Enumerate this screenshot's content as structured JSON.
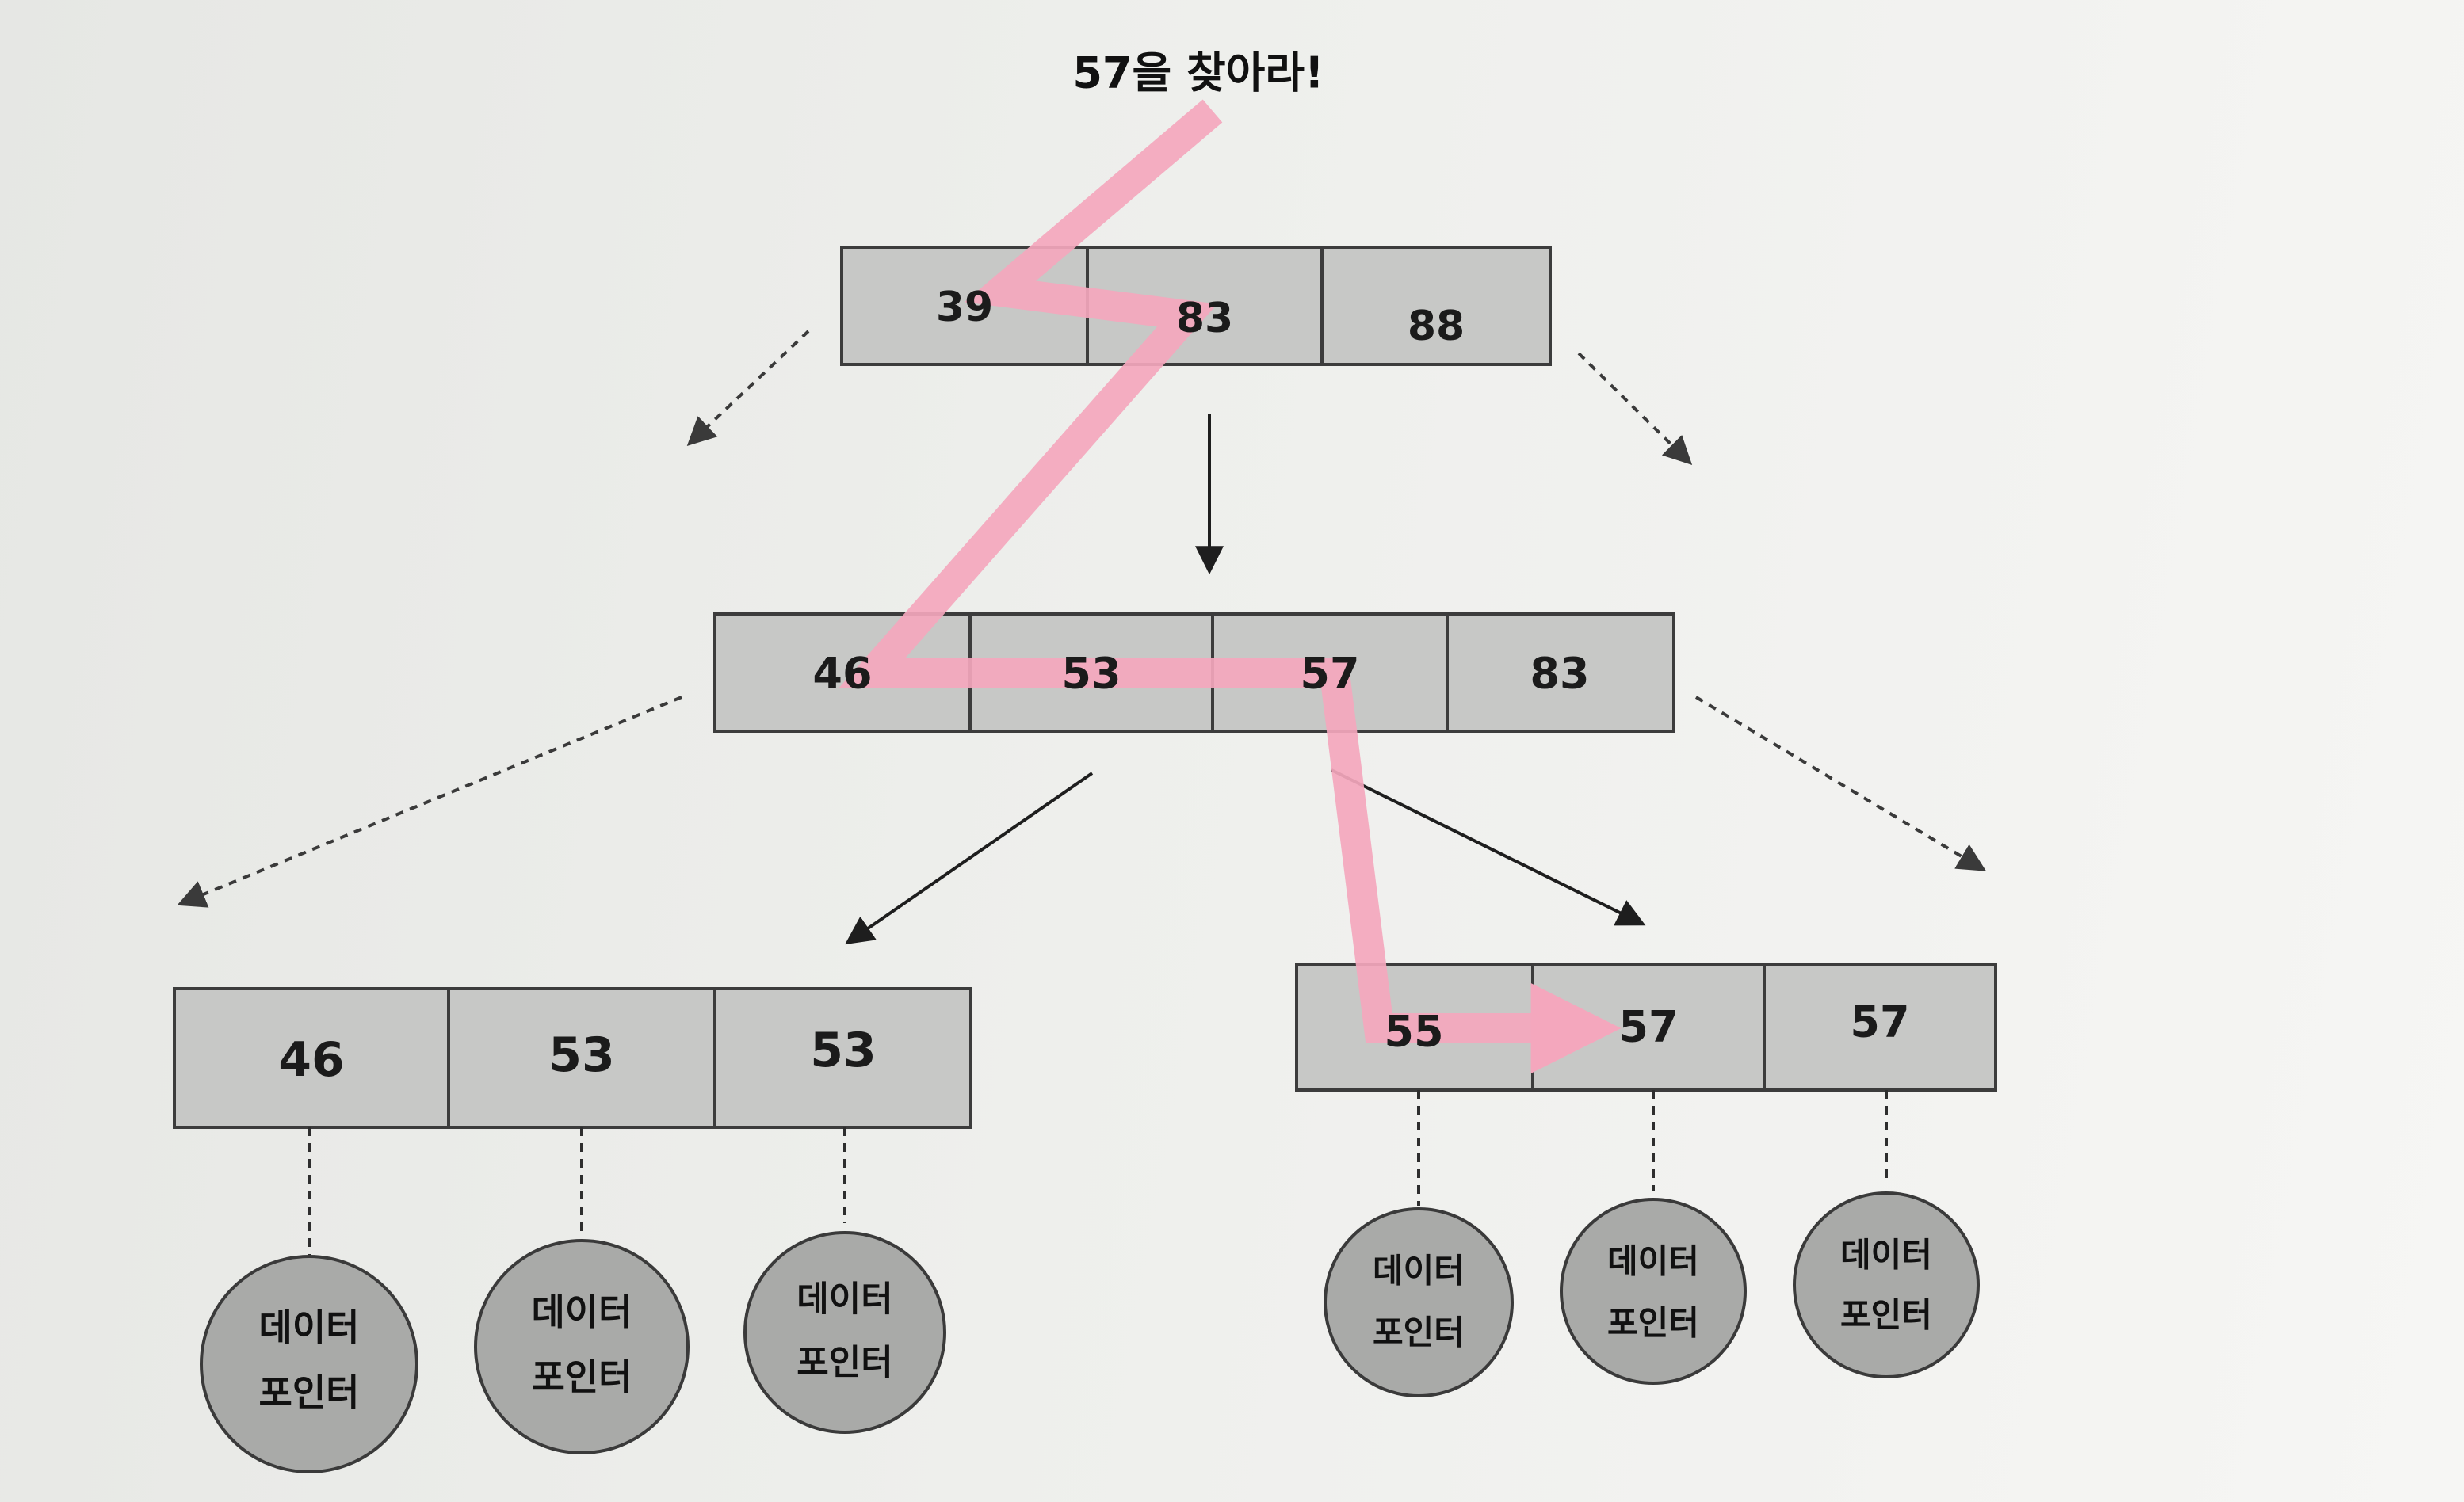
{
  "diagram": {
    "title": "57을 찾아라!",
    "root_node": {
      "keys": [
        "39",
        "83",
        "88"
      ]
    },
    "internal_node": {
      "keys": [
        "46",
        "53",
        "57",
        "83"
      ]
    },
    "leaf_left": {
      "keys": [
        "46",
        "53",
        "53"
      ],
      "pointers": [
        "데이터 포인터",
        "데이터 포인터",
        "데이터 포인터"
      ]
    },
    "leaf_right": {
      "keys": [
        "55",
        "57",
        "57"
      ],
      "pointers": [
        "데이터 포인터",
        "데이터 포인터",
        "데이터 포인터"
      ]
    },
    "pointer_label_line1": "데이터",
    "pointer_label_line2": "포인터",
    "colors": {
      "node_fill": "#c7c8c6",
      "node_stroke": "#3c3c3c",
      "circle_fill": "#a9aaa8",
      "search_path": "#f4a7bd",
      "arrow": "#1e1e1e"
    }
  }
}
